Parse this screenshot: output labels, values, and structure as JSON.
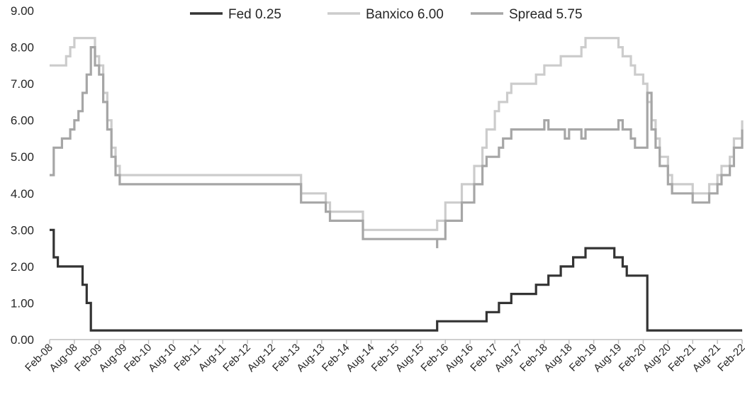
{
  "chart_data": {
    "type": "line",
    "title": "",
    "xlabel": "",
    "ylabel": "",
    "ylim": [
      0,
      9
    ],
    "yticks": [
      "0.00",
      "1.00",
      "2.00",
      "3.00",
      "4.00",
      "5.00",
      "6.00",
      "7.00",
      "8.00",
      "9.00"
    ],
    "yticks_values": [
      0,
      1,
      2,
      3,
      4,
      5,
      6,
      7,
      8,
      9
    ],
    "categories": [
      "Feb-08",
      "Aug-08",
      "Feb-09",
      "Aug-09",
      "Feb-10",
      "Aug-10",
      "Feb-11",
      "Aug-11",
      "Feb-12",
      "Aug-12",
      "Feb-13",
      "Aug-13",
      "Feb-14",
      "Aug-14",
      "Feb-15",
      "Aug-15",
      "Feb-16",
      "Aug-16",
      "Feb-17",
      "Aug-17",
      "Feb-18",
      "Aug-18",
      "Feb-19",
      "Aug-19",
      "Feb-20",
      "Aug-20",
      "Feb-21",
      "Aug-21",
      "Feb-22"
    ],
    "xlim": [
      "2008-02",
      "2022-02"
    ],
    "grid": false,
    "legend_position": "top",
    "series": [
      {
        "name": "Fed 0.25",
        "color": "#333333",
        "points": [
          [
            "2008-02",
            3.0
          ],
          [
            "2008-03",
            2.25
          ],
          [
            "2008-04",
            2.0
          ],
          [
            "2008-10",
            1.5
          ],
          [
            "2008-11",
            1.0
          ],
          [
            "2008-12",
            0.25
          ],
          [
            "2015-12",
            0.5
          ],
          [
            "2016-12",
            0.75
          ],
          [
            "2017-03",
            1.0
          ],
          [
            "2017-06",
            1.25
          ],
          [
            "2017-12",
            1.5
          ],
          [
            "2018-03",
            1.75
          ],
          [
            "2018-06",
            2.0
          ],
          [
            "2018-09",
            2.25
          ],
          [
            "2018-12",
            2.5
          ],
          [
            "2019-07",
            2.25
          ],
          [
            "2019-09",
            2.0
          ],
          [
            "2019-10",
            1.75
          ],
          [
            "2020-03",
            1.25
          ],
          [
            "2020-03",
            0.25
          ],
          [
            "2022-02",
            0.25
          ]
        ]
      },
      {
        "name": "Banxico 6.00",
        "color": "#cccccc",
        "points": [
          [
            "2008-02",
            7.5
          ],
          [
            "2008-06",
            7.75
          ],
          [
            "2008-07",
            8.0
          ],
          [
            "2008-08",
            8.25
          ],
          [
            "2009-01",
            7.75
          ],
          [
            "2009-02",
            7.5
          ],
          [
            "2009-03",
            6.75
          ],
          [
            "2009-04",
            6.0
          ],
          [
            "2009-05",
            5.25
          ],
          [
            "2009-06",
            4.75
          ],
          [
            "2009-07",
            4.5
          ],
          [
            "2013-03",
            4.0
          ],
          [
            "2013-09",
            3.75
          ],
          [
            "2013-10",
            3.5
          ],
          [
            "2014-06",
            3.0
          ],
          [
            "2015-12",
            3.25
          ],
          [
            "2016-02",
            3.75
          ],
          [
            "2016-06",
            4.25
          ],
          [
            "2016-09",
            4.75
          ],
          [
            "2016-11",
            5.25
          ],
          [
            "2016-12",
            5.75
          ],
          [
            "2017-02",
            6.25
          ],
          [
            "2017-03",
            6.5
          ],
          [
            "2017-05",
            6.75
          ],
          [
            "2017-06",
            7.0
          ],
          [
            "2017-12",
            7.25
          ],
          [
            "2018-02",
            7.5
          ],
          [
            "2018-06",
            7.75
          ],
          [
            "2018-11",
            8.0
          ],
          [
            "2018-12",
            8.25
          ],
          [
            "2019-08",
            8.0
          ],
          [
            "2019-09",
            7.75
          ],
          [
            "2019-11",
            7.5
          ],
          [
            "2019-12",
            7.25
          ],
          [
            "2020-02",
            7.0
          ],
          [
            "2020-03",
            6.5
          ],
          [
            "2020-04",
            6.0
          ],
          [
            "2020-05",
            5.5
          ],
          [
            "2020-06",
            5.0
          ],
          [
            "2020-08",
            4.5
          ],
          [
            "2020-09",
            4.25
          ],
          [
            "2021-02",
            4.0
          ],
          [
            "2021-06",
            4.25
          ],
          [
            "2021-08",
            4.5
          ],
          [
            "2021-09",
            4.75
          ],
          [
            "2021-11",
            5.0
          ],
          [
            "2021-12",
            5.5
          ],
          [
            "2022-02",
            6.0
          ]
        ]
      },
      {
        "name": "Spread 5.75",
        "color": "#a6a6a6",
        "points": [
          [
            "2008-02",
            4.5
          ],
          [
            "2008-03",
            5.25
          ],
          [
            "2008-05",
            5.5
          ],
          [
            "2008-07",
            5.75
          ],
          [
            "2008-08",
            6.0
          ],
          [
            "2008-09",
            6.25
          ],
          [
            "2008-10",
            6.75
          ],
          [
            "2008-11",
            7.25
          ],
          [
            "2008-12",
            8.0
          ],
          [
            "2009-01",
            7.5
          ],
          [
            "2009-02",
            7.25
          ],
          [
            "2009-03",
            6.5
          ],
          [
            "2009-04",
            5.75
          ],
          [
            "2009-05",
            5.0
          ],
          [
            "2009-06",
            4.5
          ],
          [
            "2009-07",
            4.25
          ],
          [
            "2013-03",
            3.75
          ],
          [
            "2013-09",
            3.5
          ],
          [
            "2013-10",
            3.25
          ],
          [
            "2014-06",
            2.75
          ],
          [
            "2015-12",
            2.5
          ],
          [
            "2015-12",
            2.75
          ],
          [
            "2016-02",
            3.25
          ],
          [
            "2016-06",
            3.75
          ],
          [
            "2016-09",
            4.25
          ],
          [
            "2016-11",
            4.75
          ],
          [
            "2016-12",
            5.0
          ],
          [
            "2017-03",
            5.25
          ],
          [
            "2017-04",
            5.5
          ],
          [
            "2017-06",
            5.75
          ],
          [
            "2018-01",
            5.75
          ],
          [
            "2018-02",
            6.0
          ],
          [
            "2018-03",
            5.75
          ],
          [
            "2018-06",
            5.75
          ],
          [
            "2018-07",
            5.5
          ],
          [
            "2018-08",
            5.75
          ],
          [
            "2018-10",
            5.75
          ],
          [
            "2018-11",
            5.5
          ],
          [
            "2018-12",
            5.75
          ],
          [
            "2019-07",
            5.75
          ],
          [
            "2019-08",
            6.0
          ],
          [
            "2019-09",
            5.75
          ],
          [
            "2019-10",
            5.75
          ],
          [
            "2019-11",
            5.5
          ],
          [
            "2019-12",
            5.25
          ],
          [
            "2020-03",
            6.75
          ],
          [
            "2020-04",
            5.75
          ],
          [
            "2020-05",
            5.25
          ],
          [
            "2020-06",
            4.75
          ],
          [
            "2020-08",
            4.25
          ],
          [
            "2020-09",
            4.0
          ],
          [
            "2021-02",
            3.75
          ],
          [
            "2021-06",
            4.0
          ],
          [
            "2021-08",
            4.25
          ],
          [
            "2021-09",
            4.5
          ],
          [
            "2021-11",
            4.75
          ],
          [
            "2021-12",
            5.25
          ],
          [
            "2022-02",
            5.75
          ]
        ]
      }
    ]
  }
}
